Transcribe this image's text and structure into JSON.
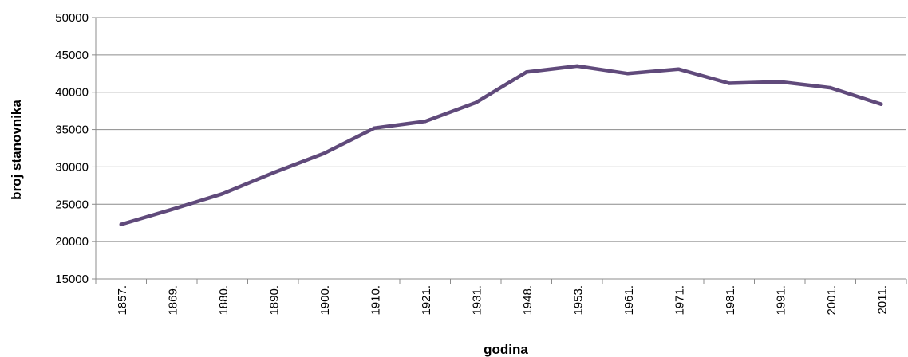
{
  "chart_data": {
    "type": "line",
    "title": "",
    "xlabel": "godina",
    "ylabel": "broj stanovnika",
    "ylim": [
      15000,
      50000
    ],
    "yticks": [
      15000,
      20000,
      25000,
      30000,
      35000,
      40000,
      45000,
      50000
    ],
    "grid": true,
    "legend": "none",
    "categories": [
      "1857.",
      "1869.",
      "1880.",
      "1890.",
      "1900.",
      "1910.",
      "1921.",
      "1931.",
      "1948.",
      "1953.",
      "1961.",
      "1971.",
      "1981.",
      "1991.",
      "2001.",
      "2011."
    ],
    "series": [
      {
        "values": [
          22300,
          24300,
          26400,
          29200,
          31800,
          35200,
          36100,
          38600,
          42700,
          43500,
          42500,
          43100,
          41200,
          41400,
          40600,
          38400
        ],
        "color": "#604a7b"
      }
    ]
  }
}
